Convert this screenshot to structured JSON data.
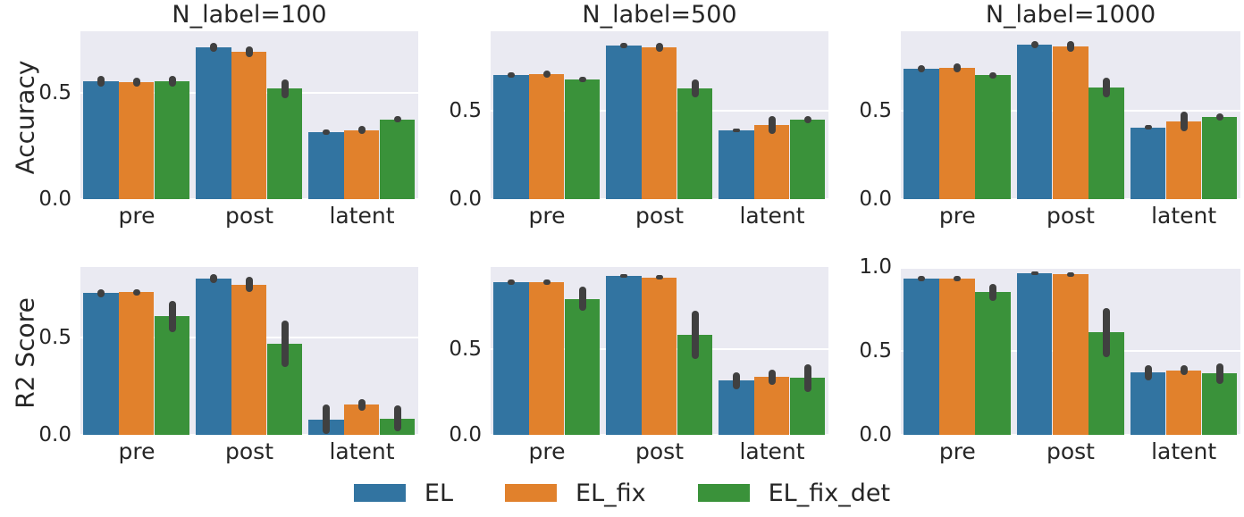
{
  "figure": {
    "row_labels": [
      "Accuracy",
      "R2 Score"
    ],
    "col_titles": [
      "N_label=100",
      "N_label=500",
      "N_label=1000"
    ],
    "categories": [
      "pre",
      "post",
      "latent"
    ],
    "series_names": [
      "EL",
      "EL_fix",
      "EL_fix_det"
    ],
    "palette": {
      "EL": "#3274a1",
      "EL_fix": "#e1812c",
      "EL_fix_det": "#3a923a"
    },
    "plot_bg_color": "#eaeaf2",
    "grid_color": "#ffffff",
    "errorbar_color": "#404040",
    "legend": {
      "items": [
        {
          "label": "EL",
          "color": "#3274a1"
        },
        {
          "label": "EL_fix",
          "color": "#e1812c"
        },
        {
          "label": "EL_fix_det",
          "color": "#3a923a"
        }
      ]
    }
  },
  "chart_data": [
    {
      "type": "bar",
      "title": "N_label=100",
      "ylabel": "Accuracy",
      "categories": [
        "pre",
        "post",
        "latent"
      ],
      "series": [
        {
          "name": "EL",
          "values": [
            0.555,
            0.715,
            0.315
          ],
          "errors": [
            0.025,
            0.02,
            0.012
          ]
        },
        {
          "name": "EL_fix",
          "values": [
            0.55,
            0.695,
            0.325
          ],
          "errors": [
            0.02,
            0.025,
            0.02
          ]
        },
        {
          "name": "EL_fix_det",
          "values": [
            0.555,
            0.52,
            0.375
          ],
          "errors": [
            0.025,
            0.045,
            0.015
          ]
        }
      ],
      "yticks": [
        0,
        0.5
      ],
      "ytick_labels": [
        "0.0",
        "0.5"
      ],
      "ylim": [
        0,
        0.79
      ],
      "grid": true,
      "legend_position": "none"
    },
    {
      "type": "bar",
      "title": "N_label=500",
      "ylabel": "",
      "categories": [
        "pre",
        "post",
        "latent"
      ],
      "series": [
        {
          "name": "EL",
          "values": [
            0.7,
            0.865,
            0.385
          ],
          "errors": [
            0.015,
            0.015,
            0.01
          ]
        },
        {
          "name": "EL_fix",
          "values": [
            0.705,
            0.855,
            0.415
          ],
          "errors": [
            0.02,
            0.025,
            0.05
          ]
        },
        {
          "name": "EL_fix_det",
          "values": [
            0.675,
            0.625,
            0.445
          ],
          "errors": [
            0.015,
            0.05,
            0.02
          ]
        }
      ],
      "yticks": [
        0,
        0.5
      ],
      "ytick_labels": [
        "0.0",
        "0.5"
      ],
      "ylim": [
        0,
        0.945
      ],
      "grid": true,
      "legend_position": "none"
    },
    {
      "type": "bar",
      "title": "N_label=1000",
      "ylabel": "",
      "categories": [
        "pre",
        "post",
        "latent"
      ],
      "series": [
        {
          "name": "EL",
          "values": [
            0.74,
            0.875,
            0.405
          ],
          "errors": [
            0.02,
            0.02,
            0.012
          ]
        },
        {
          "name": "EL_fix",
          "values": [
            0.745,
            0.865,
            0.44
          ],
          "errors": [
            0.025,
            0.03,
            0.055
          ]
        },
        {
          "name": "EL_fix_det",
          "values": [
            0.7,
            0.63,
            0.465
          ],
          "errors": [
            0.02,
            0.055,
            0.02
          ]
        }
      ],
      "yticks": [
        0,
        0.5
      ],
      "ytick_labels": [
        "0.0",
        "0.5"
      ],
      "ylim": [
        0,
        0.95
      ],
      "grid": true,
      "legend_position": "none"
    },
    {
      "type": "bar",
      "title": "",
      "ylabel": "R2 Score",
      "categories": [
        "pre",
        "post",
        "latent"
      ],
      "series": [
        {
          "name": "EL",
          "values": [
            0.73,
            0.805,
            0.08
          ],
          "errors": [
            0.02,
            0.025,
            0.075
          ]
        },
        {
          "name": "EL_fix",
          "values": [
            0.735,
            0.775,
            0.155
          ],
          "errors": [
            0.015,
            0.04,
            0.03
          ]
        },
        {
          "name": "EL_fix_det",
          "values": [
            0.61,
            0.47,
            0.085
          ],
          "errors": [
            0.08,
            0.12,
            0.065
          ]
        }
      ],
      "yticks": [
        0,
        0.5
      ],
      "ytick_labels": [
        "0.0",
        "0.5"
      ],
      "ylim": [
        0,
        0.865
      ],
      "grid": true,
      "legend_position": "none"
    },
    {
      "type": "bar",
      "title": "",
      "ylabel": "",
      "categories": [
        "pre",
        "post",
        "latent"
      ],
      "series": [
        {
          "name": "EL",
          "values": [
            0.885,
            0.925,
            0.315
          ],
          "errors": [
            0.015,
            0.01,
            0.05
          ]
        },
        {
          "name": "EL_fix",
          "values": [
            0.885,
            0.915,
            0.335
          ],
          "errors": [
            0.015,
            0.015,
            0.045
          ]
        },
        {
          "name": "EL_fix_det",
          "values": [
            0.79,
            0.58,
            0.33
          ],
          "errors": [
            0.07,
            0.14,
            0.08
          ]
        }
      ],
      "yticks": [
        0,
        0.5
      ],
      "ytick_labels": [
        "0.0",
        "0.5"
      ],
      "ylim": [
        0,
        0.975
      ],
      "grid": true,
      "legend_position": "none"
    },
    {
      "type": "bar",
      "title": "",
      "ylabel": "",
      "categories": [
        "pre",
        "post",
        "latent"
      ],
      "series": [
        {
          "name": "EL",
          "values": [
            0.93,
            0.965,
            0.37
          ],
          "errors": [
            0.015,
            0.01,
            0.045
          ]
        },
        {
          "name": "EL_fix",
          "values": [
            0.93,
            0.955,
            0.385
          ],
          "errors": [
            0.015,
            0.015,
            0.03
          ]
        },
        {
          "name": "EL_fix_det",
          "values": [
            0.85,
            0.61,
            0.365
          ],
          "errors": [
            0.05,
            0.145,
            0.06
          ]
        }
      ],
      "yticks": [
        0,
        0.5,
        1.0
      ],
      "ytick_labels": [
        "0.0",
        "0.5",
        "1.0"
      ],
      "ylim": [
        0,
        1.0
      ],
      "grid": true,
      "legend_position": "none"
    }
  ]
}
